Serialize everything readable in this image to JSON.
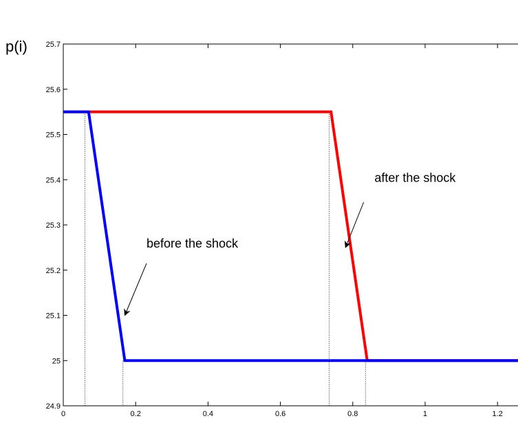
{
  "chart_data": {
    "type": "line",
    "title": "",
    "xlabel": "",
    "ylabel": "p(i)",
    "xlim": [
      0,
      1.27
    ],
    "ylim": [
      24.9,
      25.7
    ],
    "grid": false,
    "x_ticks": [
      0,
      0.2,
      0.4,
      0.6,
      0.8,
      1,
      1.2
    ],
    "x_tick_labels": [
      "0",
      "0.2",
      "0.4",
      "0.6",
      "0.8",
      "1",
      "1.2"
    ],
    "y_ticks": [
      24.9,
      25,
      25.1,
      25.2,
      25.3,
      25.4,
      25.5,
      25.6,
      25.7
    ],
    "y_tick_labels": [
      "24.9",
      "25",
      "25.1",
      "25.2",
      "25.3",
      "25.4",
      "25.5",
      "25.6",
      "25.7"
    ],
    "series": [
      {
        "color": "#ff0000",
        "x": [
          0,
          0.74,
          0.84,
          1.27
        ],
        "y": [
          25.55,
          25.55,
          25.0,
          25.0
        ]
      },
      {
        "color": "#0000ff",
        "x": [
          0,
          0.07,
          0.17,
          1.27
        ],
        "y": [
          25.55,
          25.55,
          25.0,
          25.0
        ]
      }
    ],
    "reference_lines": [
      {
        "x": 0.06,
        "y": 25.55
      },
      {
        "x": 0.165,
        "y": 25.0
      },
      {
        "x": 0.735,
        "y": 25.55
      },
      {
        "x": 0.835,
        "y": 25.0
      },
      {
        "x": 1.265,
        "y": 25.0
      }
    ],
    "annotations": [
      {
        "text": "after the shock",
        "tx": 0.86,
        "ty": 25.395,
        "ax": 0.83,
        "ay": 25.35,
        "hx": 0.78,
        "hy": 25.25
      },
      {
        "text": "before the shock",
        "tx": 0.23,
        "ty": 25.25,
        "ax": 0.23,
        "ay": 25.215,
        "hx": 0.17,
        "hy": 25.1
      }
    ]
  }
}
